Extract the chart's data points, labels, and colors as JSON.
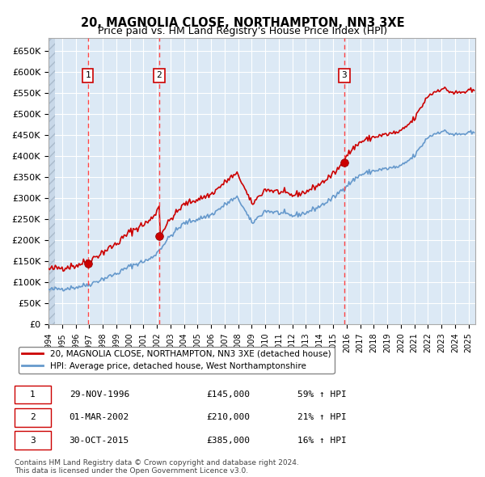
{
  "title": "20, MAGNOLIA CLOSE, NORTHAMPTON, NN3 3XE",
  "subtitle": "Price paid vs. HM Land Registry's House Price Index (HPI)",
  "purchases": [
    {
      "label": "1",
      "date_x": 1996.91,
      "price": 145000,
      "date_str": "29-NOV-1996",
      "pct": "59%"
    },
    {
      "label": "2",
      "date_x": 2002.17,
      "price": 210000,
      "date_str": "01-MAR-2002",
      "pct": "21%"
    },
    {
      "label": "3",
      "date_x": 2015.83,
      "price": 385000,
      "date_str": "30-OCT-2015",
      "pct": "16%"
    }
  ],
  "legend_line1": "20, MAGNOLIA CLOSE, NORTHAMPTON, NN3 3XE (detached house)",
  "legend_line2": "HPI: Average price, detached house, West Northamptonshire",
  "footnote": "Contains HM Land Registry data © Crown copyright and database right 2024.\nThis data is licensed under the Open Government Licence v3.0.",
  "hpi_color": "#6699cc",
  "price_color": "#cc0000",
  "bg_color": "#dce9f5",
  "plot_bg": "#dce9f5",
  "vline_color": "#ff4444",
  "box_color": "#cc0000",
  "ylim": [
    0,
    680000
  ],
  "xlim_start": 1994.0,
  "xlim_end": 2025.5
}
